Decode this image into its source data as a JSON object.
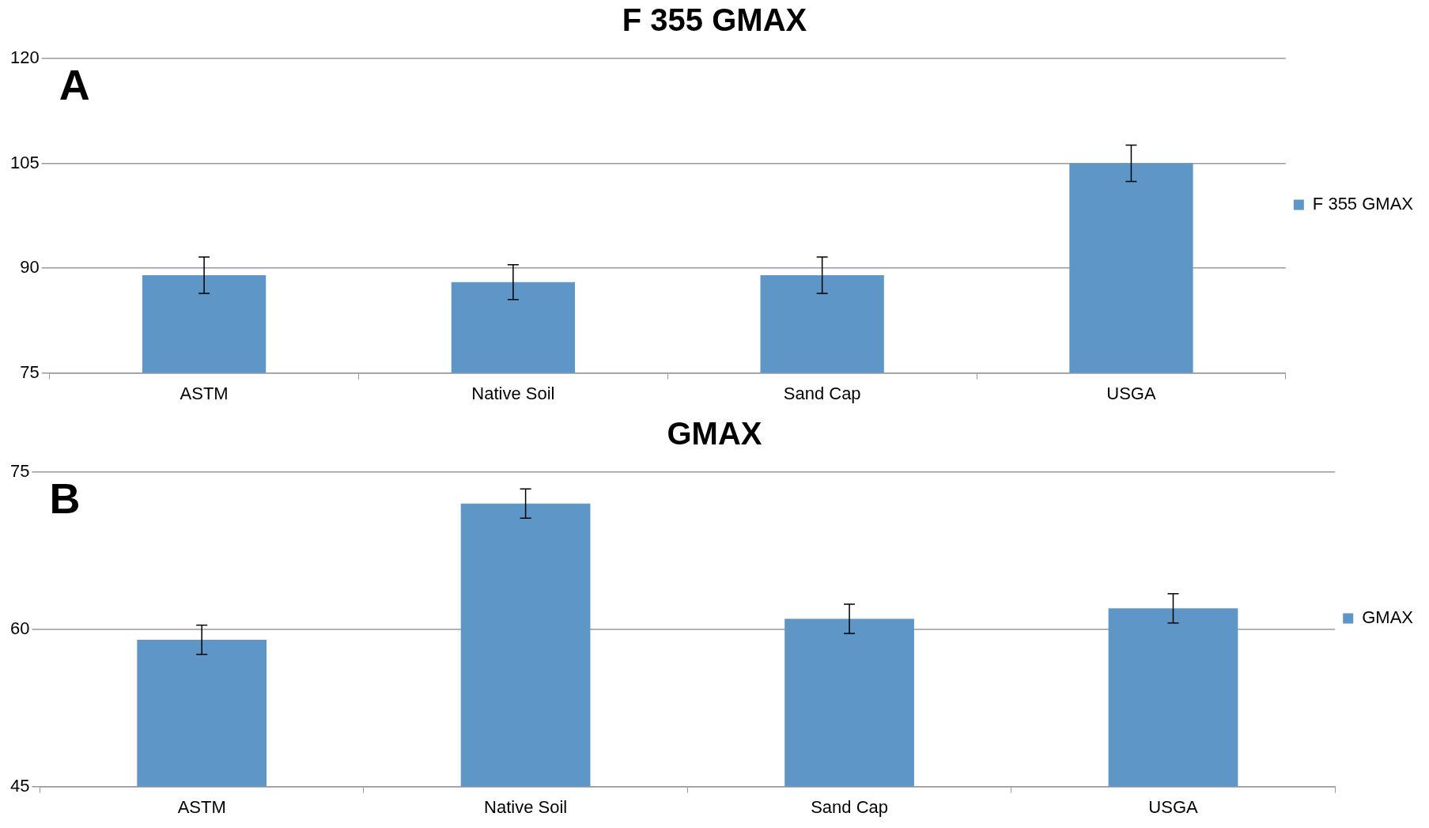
{
  "chart_data": [
    {
      "type": "bar",
      "title": "F 355 GMAX",
      "categories": [
        "ASTM",
        "Native Soil",
        "Sand Cap",
        "USGA"
      ],
      "series": [
        {
          "name": "F 355 GMAX",
          "color": "#5f96c8",
          "values": [
            89,
            88,
            89,
            105
          ],
          "errors": [
            2.6,
            2.5,
            2.6,
            2.6
          ]
        }
      ],
      "ylim": [
        75,
        120
      ],
      "yticks": [
        75,
        90,
        105,
        120
      ],
      "grid": "y",
      "legend": "right",
      "annotations": [
        "A"
      ]
    },
    {
      "type": "bar",
      "title": "GMAX",
      "categories": [
        "ASTM",
        "Native Soil",
        "Sand Cap",
        "USGA"
      ],
      "series": [
        {
          "name": "GMAX",
          "color": "#5f96c8",
          "values": [
            59,
            72,
            61,
            62
          ],
          "errors": [
            1.4,
            1.4,
            1.4,
            1.4
          ]
        }
      ],
      "ylim": [
        45,
        75
      ],
      "yticks": [
        45,
        60,
        75
      ],
      "grid": "y",
      "legend": "right",
      "annotations": [
        "B"
      ]
    }
  ]
}
